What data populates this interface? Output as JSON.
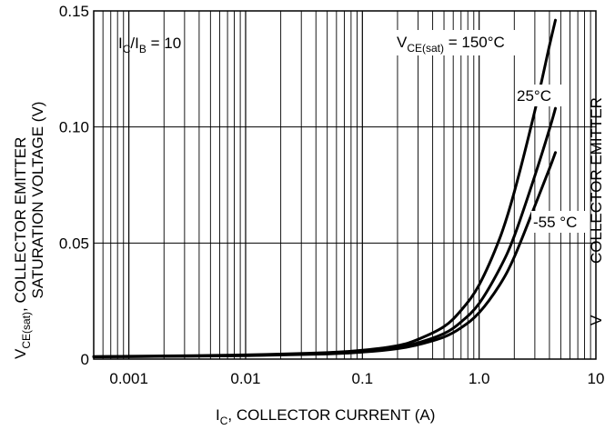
{
  "chart_data": {
    "type": "line",
    "x_scale": "log",
    "xlim": [
      0.0005,
      10
    ],
    "ylim": [
      0,
      0.15
    ],
    "grid": true,
    "x_ticks": [
      {
        "value": 0.001,
        "label": "0.001"
      },
      {
        "value": 0.01,
        "label": "0.01"
      },
      {
        "value": 0.1,
        "label": "0.1"
      },
      {
        "value": 1,
        "label": "1.0"
      },
      {
        "value": 10,
        "label": "10"
      }
    ],
    "y_ticks": [
      {
        "value": 0,
        "label": "0"
      },
      {
        "value": 0.05,
        "label": "0.05"
      },
      {
        "value": 0.1,
        "label": "0.10"
      },
      {
        "value": 0.15,
        "label": "0.15"
      }
    ],
    "xlabel": {
      "main": "I",
      "sub": "C",
      "rest": ", COLLECTOR CURRENT (A)"
    },
    "ylabel": {
      "line1_main": "V",
      "line1_sub": "CE(sat)",
      "line1_rest": ", COLLECTOR EMITTER",
      "line2": "SATURATION VOLTAGE (V)"
    },
    "right_edge_text": "V",
    "right_edge_rotated": "COLLECTOR EMITTER",
    "condition": {
      "a": "I",
      "a_sub": "C",
      "mid": "/I",
      "b_sub": "B",
      "rest": " = 10"
    },
    "series": [
      {
        "name": "150°C",
        "label_main": "V",
        "label_sub": "CE(sat)",
        "label_rest": " = 150°C",
        "x": [
          0.0005,
          0.001,
          0.01,
          0.05,
          0.1,
          0.2,
          0.3,
          0.5,
          0.7,
          1.0,
          1.5,
          2.0,
          3.0,
          4.0,
          4.5
        ],
        "y": [
          0.001,
          0.0012,
          0.0018,
          0.0028,
          0.0038,
          0.0058,
          0.0085,
          0.014,
          0.021,
          0.032,
          0.052,
          0.072,
          0.107,
          0.135,
          0.146
        ]
      },
      {
        "name": "25°C",
        "label_main": "25°C",
        "x": [
          0.0005,
          0.001,
          0.01,
          0.05,
          0.1,
          0.2,
          0.3,
          0.5,
          0.7,
          1.0,
          1.5,
          2.0,
          3.0,
          4.0,
          4.5
        ],
        "y": [
          0.001,
          0.0011,
          0.0016,
          0.0024,
          0.0033,
          0.005,
          0.007,
          0.011,
          0.016,
          0.024,
          0.039,
          0.053,
          0.079,
          0.099,
          0.108
        ]
      },
      {
        "name": "-55 °C",
        "label_main": "-55 °C",
        "x": [
          0.0005,
          0.001,
          0.01,
          0.05,
          0.1,
          0.2,
          0.3,
          0.5,
          0.7,
          1.0,
          1.5,
          2.0,
          3.0,
          4.0,
          4.5
        ],
        "y": [
          0.001,
          0.0011,
          0.0015,
          0.0022,
          0.003,
          0.0045,
          0.0062,
          0.0095,
          0.0135,
          0.02,
          0.032,
          0.044,
          0.066,
          0.082,
          0.089
        ]
      }
    ],
    "line_color": "#000000"
  }
}
